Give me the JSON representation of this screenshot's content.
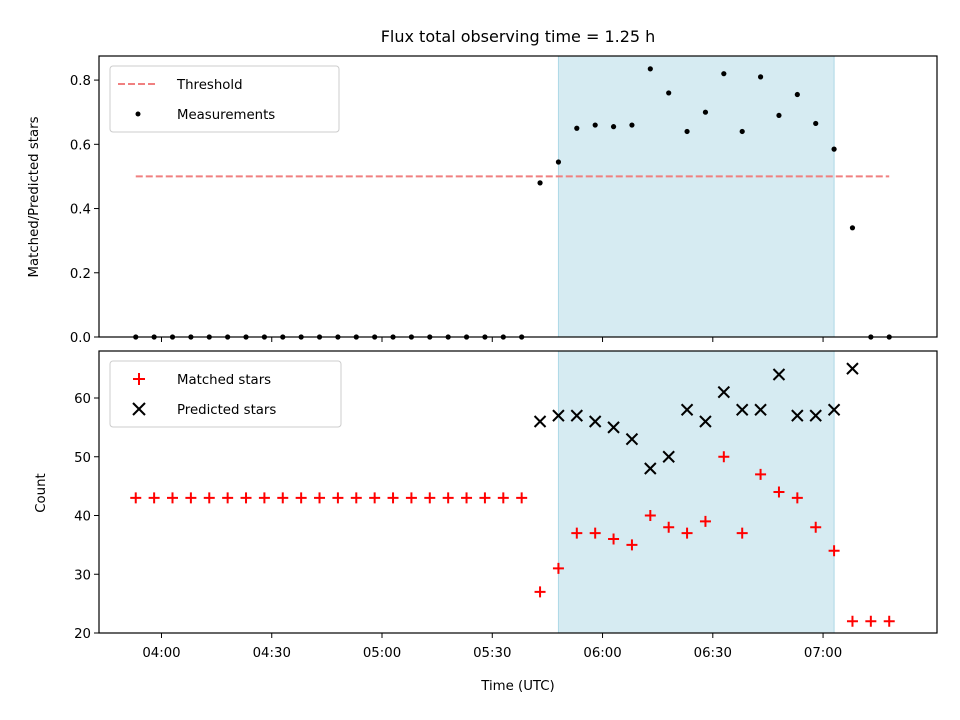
{
  "chart_data": [
    {
      "type": "scatter",
      "title": "Flux total observing time = 1.25 h",
      "xlabel": "",
      "ylabel": "Matched/Predicted stars",
      "xlim": [
        "03:43",
        "07:31"
      ],
      "ylim": [
        0,
        0.875
      ],
      "yticks": [
        0.0,
        0.2,
        0.4,
        0.6,
        0.8
      ],
      "ytick_labels": [
        "0.0",
        "0.2",
        "0.4",
        "0.6",
        "0.8"
      ],
      "legend": {
        "placement": "top-left",
        "entries": [
          "Threshold",
          "Measurements"
        ]
      },
      "highlight_span": {
        "start": "05:48",
        "end": "07:03",
        "color": "#add8e6"
      },
      "series": [
        {
          "name": "Threshold",
          "style": "dashed-line",
          "color": "#f08080",
          "x": [
            "03:53",
            "07:18"
          ],
          "y": [
            0.5,
            0.5
          ]
        },
        {
          "name": "Measurements",
          "style": "dot",
          "color": "#000000",
          "x": [
            "03:53",
            "03:58",
            "04:03",
            "04:08",
            "04:13",
            "04:18",
            "04:23",
            "04:28",
            "04:33",
            "04:38",
            "04:43",
            "04:48",
            "04:53",
            "04:58",
            "05:03",
            "05:08",
            "05:13",
            "05:18",
            "05:23",
            "05:28",
            "05:33",
            "05:38",
            "05:43",
            "05:48",
            "05:53",
            "05:58",
            "06:03",
            "06:08",
            "06:13",
            "06:18",
            "06:23",
            "06:28",
            "06:33",
            "06:38",
            "06:43",
            "06:48",
            "06:53",
            "06:58",
            "07:03",
            "07:08",
            "07:13",
            "07:18"
          ],
          "y": [
            0,
            0,
            0,
            0,
            0,
            0,
            0,
            0,
            0,
            0,
            0,
            0,
            0,
            0,
            0,
            0,
            0,
            0,
            0,
            0,
            0,
            0,
            0.48,
            0.545,
            0.65,
            0.66,
            0.655,
            0.66,
            0.835,
            0.76,
            0.64,
            0.7,
            0.82,
            0.64,
            0.81,
            0.69,
            0.755,
            0.665,
            0.585,
            0.34,
            0,
            0
          ]
        }
      ]
    },
    {
      "type": "scatter",
      "xlabel": "Time (UTC)",
      "ylabel": "Count",
      "xlim": [
        "03:43",
        "07:31"
      ],
      "xticks": [
        "04:00",
        "04:30",
        "05:00",
        "05:30",
        "06:00",
        "06:30",
        "07:00"
      ],
      "ylim": [
        20,
        68
      ],
      "yticks": [
        20,
        30,
        40,
        50,
        60
      ],
      "legend": {
        "placement": "top-left",
        "entries": [
          "Matched stars",
          "Predicted stars"
        ]
      },
      "highlight_span": {
        "start": "05:48",
        "end": "07:03",
        "color": "#add8e6"
      },
      "series": [
        {
          "name": "Matched stars",
          "style": "plus",
          "color": "#ff0000",
          "x": [
            "03:53",
            "03:58",
            "04:03",
            "04:08",
            "04:13",
            "04:18",
            "04:23",
            "04:28",
            "04:33",
            "04:38",
            "04:43",
            "04:48",
            "04:53",
            "04:58",
            "05:03",
            "05:08",
            "05:13",
            "05:18",
            "05:23",
            "05:28",
            "05:33",
            "05:38",
            "05:43",
            "05:48",
            "05:53",
            "05:58",
            "06:03",
            "06:08",
            "06:13",
            "06:18",
            "06:23",
            "06:28",
            "06:33",
            "06:38",
            "06:43",
            "06:48",
            "06:53",
            "06:58",
            "07:03",
            "07:08",
            "07:13",
            "07:18"
          ],
          "y": [
            43,
            43,
            43,
            43,
            43,
            43,
            43,
            43,
            43,
            43,
            43,
            43,
            43,
            43,
            43,
            43,
            43,
            43,
            43,
            43,
            43,
            43,
            27,
            31,
            37,
            37,
            36,
            35,
            40,
            38,
            37,
            39,
            50,
            37,
            47,
            44,
            43,
            38,
            34,
            22,
            22,
            22
          ]
        },
        {
          "name": "Predicted stars",
          "style": "x",
          "color": "#000000",
          "x": [
            "05:43",
            "05:48",
            "05:53",
            "05:58",
            "06:03",
            "06:08",
            "06:13",
            "06:18",
            "06:23",
            "06:28",
            "06:33",
            "06:38",
            "06:43",
            "06:48",
            "06:53",
            "06:58",
            "07:03",
            "07:08"
          ],
          "y": [
            56,
            57,
            57,
            56,
            55,
            53,
            48,
            50,
            58,
            56,
            61,
            58,
            58,
            64,
            57,
            57,
            58,
            65
          ]
        }
      ]
    }
  ]
}
